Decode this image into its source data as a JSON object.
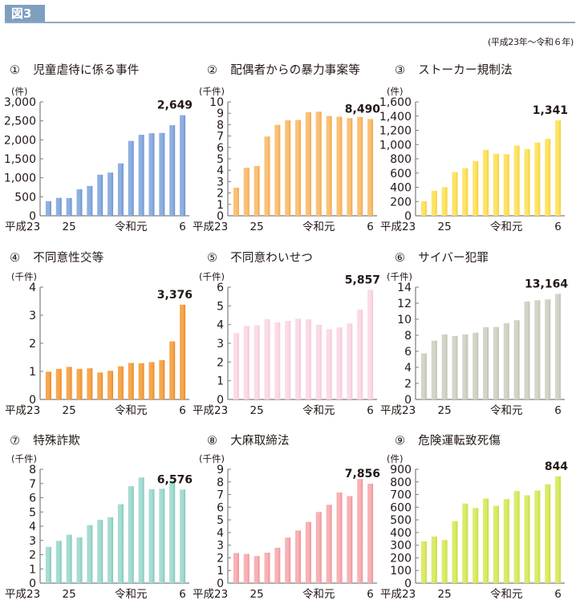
{
  "figure": {
    "badge": "図3",
    "period": "(平成23年〜令和６年)"
  },
  "chart_data": [
    {
      "type": "bar",
      "number": "①",
      "title": "児童虐待に係る事件",
      "unit": "(件)",
      "categories": [
        "平成23",
        "24",
        "25",
        "26",
        "27",
        "28",
        "29",
        "30",
        "令和元",
        "2",
        "3",
        "4",
        "5",
        "6"
      ],
      "x_tick_labels": {
        "0": "平成23",
        "2": "25",
        "8": "令和元",
        "13": "6"
      },
      "values": [
        384,
        472,
        467,
        698,
        785,
        1081,
        1138,
        1380,
        1972,
        2133,
        2174,
        2181,
        2385,
        2649
      ],
      "highlight_label": "2,649",
      "ylim": [
        0,
        3000
      ],
      "yticks": [
        0,
        500,
        1000,
        1500,
        2000,
        2500,
        3000
      ],
      "ytick_labels": [
        "0",
        "500",
        "1,000",
        "1,500",
        "2,000",
        "2,500",
        "3,000"
      ],
      "color": "#8fb0e0",
      "color_dark": "#6d93cf"
    },
    {
      "type": "bar",
      "number": "②",
      "title": "配偶者からの暴力事案等",
      "unit": "(千件)",
      "categories": [
        "平成23",
        "24",
        "25",
        "26",
        "27",
        "28",
        "29",
        "30",
        "令和元",
        "2",
        "3",
        "4",
        "5",
        "6"
      ],
      "x_tick_labels": {
        "0": "平成23",
        "2": "25",
        "8": "令和元",
        "13": "6"
      },
      "values": [
        2.47,
        4.21,
        4.37,
        6.96,
        7.98,
        8.38,
        8.41,
        9.09,
        9.14,
        8.76,
        8.7,
        8.57,
        8.68,
        8.49
      ],
      "highlight_label": "8,490",
      "ylim": [
        0,
        10
      ],
      "yticks": [
        0,
        1,
        2,
        3,
        4,
        5,
        6,
        7,
        8,
        9,
        10
      ],
      "ytick_labels": [
        "0",
        "1",
        "2",
        "3",
        "4",
        "5",
        "6",
        "7",
        "8",
        "9",
        "10"
      ],
      "color": "#f9c27a",
      "color_dark": "#f3a746"
    },
    {
      "type": "bar",
      "number": "③",
      "title": "ストーカー規制法",
      "unit": "(件)",
      "categories": [
        "平成23",
        "24",
        "25",
        "26",
        "27",
        "28",
        "29",
        "30",
        "令和元",
        "2",
        "3",
        "4",
        "5",
        "6"
      ],
      "x_tick_labels": {
        "0": "平成23",
        "2": "25",
        "8": "令和元",
        "13": "6"
      },
      "values": [
        205,
        351,
        402,
        613,
        668,
        769,
        926,
        870,
        864,
        985,
        937,
        1028,
        1081,
        1341
      ],
      "highlight_label": "1,341",
      "ylim": [
        0,
        1600
      ],
      "yticks": [
        0,
        200,
        400,
        600,
        800,
        1000,
        1200,
        1400,
        1600
      ],
      "ytick_labels": [
        "0",
        "200",
        "400",
        "600",
        "800",
        "1,000",
        "1,200",
        "1,400",
        "1,600"
      ],
      "color": "#fde46a",
      "color_dark": "#f7d030"
    },
    {
      "type": "bar",
      "number": "④",
      "title": "不同意性交等",
      "unit": "(千件)",
      "categories": [
        "平成23",
        "24",
        "25",
        "26",
        "27",
        "28",
        "29",
        "30",
        "令和元",
        "2",
        "3",
        "4",
        "5",
        "6"
      ],
      "x_tick_labels": {
        "0": "平成23",
        "2": "25",
        "8": "令和元",
        "13": "6"
      },
      "values": [
        0.99,
        1.09,
        1.16,
        1.09,
        1.11,
        0.96,
        1.02,
        1.18,
        1.3,
        1.29,
        1.33,
        1.4,
        2.07,
        3.376
      ],
      "highlight_label": "3,376",
      "ylim": [
        0,
        4
      ],
      "yticks": [
        0,
        1,
        2,
        3,
        4
      ],
      "ytick_labels": [
        "0",
        "1",
        "2",
        "3",
        "4"
      ],
      "color": "#f5a850",
      "color_dark": "#ec8a24"
    },
    {
      "type": "bar",
      "number": "⑤",
      "title": "不同意わいせつ",
      "unit": "(千件)",
      "categories": [
        "平成23",
        "24",
        "25",
        "26",
        "27",
        "28",
        "29",
        "30",
        "令和元",
        "2",
        "3",
        "4",
        "5",
        "6"
      ],
      "x_tick_labels": {
        "0": "平成23",
        "2": "25",
        "8": "令和元",
        "13": "6"
      },
      "values": [
        3.55,
        3.93,
        3.96,
        4.29,
        4.12,
        4.2,
        4.31,
        4.28,
        3.99,
        3.76,
        3.85,
        4.06,
        4.8,
        5.857
      ],
      "highlight_label": "5,857",
      "ylim": [
        0,
        6
      ],
      "yticks": [
        0,
        1,
        2,
        3,
        4,
        5,
        6
      ],
      "ytick_labels": [
        "0",
        "1",
        "2",
        "3",
        "4",
        "5",
        "6"
      ],
      "color": "#fbdbe8",
      "color_dark": "#f6c6da"
    },
    {
      "type": "bar",
      "number": "⑥",
      "title": "サイバー犯罪",
      "unit": "(千件)",
      "categories": [
        "平成23",
        "24",
        "25",
        "26",
        "27",
        "28",
        "29",
        "30",
        "令和元",
        "2",
        "3",
        "4",
        "5",
        "6"
      ],
      "x_tick_labels": {
        "0": "平成23",
        "2": "25",
        "8": "令和元",
        "13": "6"
      },
      "values": [
        5.74,
        7.33,
        8.11,
        7.91,
        8.1,
        8.32,
        9.01,
        9.04,
        9.52,
        9.88,
        12.21,
        12.37,
        12.48,
        13.164
      ],
      "highlight_label": "13,164",
      "ylim": [
        0,
        14
      ],
      "yticks": [
        0,
        2,
        4,
        6,
        8,
        10,
        12,
        14
      ],
      "ytick_labels": [
        "0",
        "2",
        "4",
        "6",
        "8",
        "10",
        "12",
        "14"
      ],
      "color": "#d3d5c8",
      "color_dark": "#bfc2b2"
    },
    {
      "type": "bar",
      "number": "⑦",
      "title": "特殊詐欺",
      "unit": "(千件)",
      "categories": [
        "平成23",
        "24",
        "25",
        "26",
        "27",
        "28",
        "29",
        "30",
        "令和元",
        "2",
        "3",
        "4",
        "5",
        "6"
      ],
      "x_tick_labels": {
        "0": "平成23",
        "2": "25",
        "8": "令和元",
        "13": "6"
      },
      "values": [
        2.55,
        2.97,
        3.4,
        3.22,
        4.08,
        4.45,
        4.63,
        5.54,
        6.81,
        7.42,
        6.6,
        6.63,
        7.2,
        6.576
      ],
      "highlight_label": "6,576",
      "ylim": [
        0,
        8
      ],
      "yticks": [
        0,
        1,
        2,
        3,
        4,
        5,
        6,
        7,
        8
      ],
      "ytick_labels": [
        "0",
        "1",
        "2",
        "3",
        "4",
        "5",
        "6",
        "7",
        "8"
      ],
      "color": "#a8dcd3",
      "color_dark": "#7fc8bb"
    },
    {
      "type": "bar",
      "number": "⑧",
      "title": "大麻取締法",
      "unit": "(千件)",
      "categories": [
        "平成23",
        "24",
        "25",
        "26",
        "27",
        "28",
        "29",
        "30",
        "令和元",
        "2",
        "3",
        "4",
        "5",
        "6"
      ],
      "x_tick_labels": {
        "0": "平成23",
        "2": "25",
        "8": "令和元",
        "13": "6"
      },
      "values": [
        2.38,
        2.31,
        2.14,
        2.41,
        2.8,
        3.6,
        4.16,
        4.84,
        5.62,
        6.19,
        7.16,
        6.88,
        8.22,
        7.856
      ],
      "highlight_label": "7,856",
      "ylim": [
        0,
        9
      ],
      "yticks": [
        0,
        1,
        2,
        3,
        4,
        5,
        6,
        7,
        8,
        9
      ],
      "ytick_labels": [
        "0",
        "1",
        "2",
        "3",
        "4",
        "5",
        "6",
        "7",
        "8",
        "9"
      ],
      "color": "#f7b3b6",
      "color_dark": "#ef9196"
    },
    {
      "type": "bar",
      "number": "⑨",
      "title": "危険運転致死傷",
      "unit": "(件)",
      "categories": [
        "平成23",
        "24",
        "25",
        "26",
        "27",
        "28",
        "29",
        "30",
        "令和元",
        "2",
        "3",
        "4",
        "5",
        "6"
      ],
      "x_tick_labels": {
        "0": "平成23",
        "2": "25",
        "8": "令和元",
        "13": "6"
      },
      "values": [
        330,
        368,
        341,
        490,
        629,
        593,
        668,
        611,
        664,
        728,
        694,
        732,
        781,
        844
      ],
      "highlight_label": "844",
      "ylim": [
        0,
        900
      ],
      "yticks": [
        0,
        100,
        200,
        300,
        400,
        500,
        600,
        700,
        800,
        900
      ],
      "ytick_labels": [
        "0",
        "100",
        "200",
        "300",
        "400",
        "500",
        "600",
        "700",
        "800",
        "900"
      ],
      "color": "#dceb6a",
      "color_dark": "#c8dc3c"
    }
  ]
}
